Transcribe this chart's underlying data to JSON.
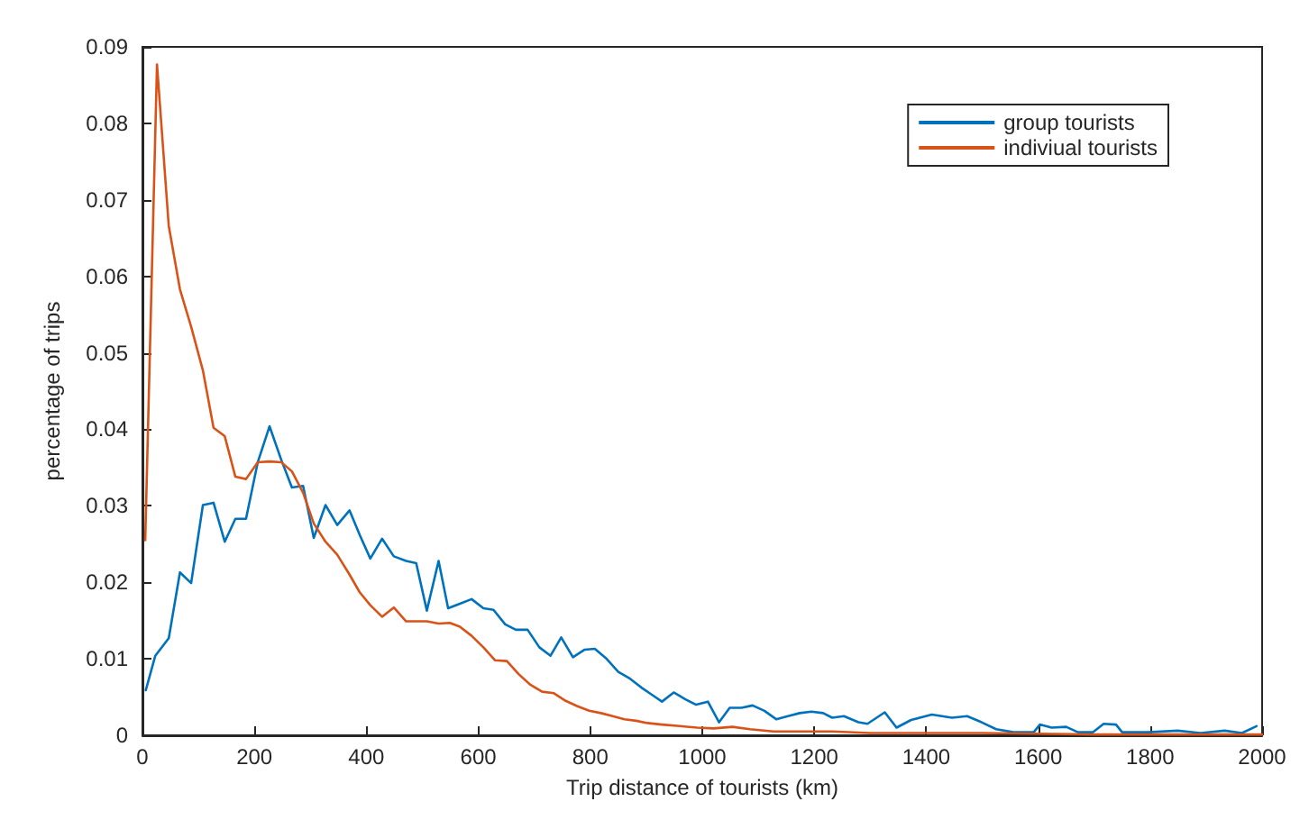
{
  "chart_data": {
    "type": "line",
    "xlabel": "Trip distance of tourists (km)",
    "ylabel": "percentage of trips",
    "xlim": [
      0,
      2000
    ],
    "xticks": [
      0,
      200,
      400,
      600,
      800,
      1000,
      1200,
      1400,
      1600,
      1800,
      2000
    ],
    "ylim": [
      0,
      0.09
    ],
    "yticks": [
      0,
      0.01,
      0.02,
      0.03,
      0.04,
      0.05,
      0.06,
      0.07,
      0.08,
      0.09
    ],
    "grid": false,
    "legend": "top right",
    "marker": "none",
    "line_style": "solid",
    "series": [
      {
        "name": "group tourists",
        "color": "#0072bd",
        "x": [
          6,
          23,
          47,
          67,
          87,
          108,
          127,
          147,
          166,
          185,
          206,
          227,
          248,
          267,
          287,
          306,
          327,
          348,
          370,
          388,
          407,
          428,
          449,
          471,
          489,
          508,
          529,
          546,
          567,
          588,
          609,
          627,
          648,
          667,
          688,
          709,
          729,
          748,
          769,
          790,
          808,
          829,
          850,
          871,
          892,
          910,
          928,
          949,
          970,
          989,
          1010,
          1030,
          1049,
          1070,
          1090,
          1111,
          1132,
          1153,
          1174,
          1195,
          1216,
          1232,
          1253,
          1279,
          1295,
          1326,
          1347,
          1373,
          1410,
          1446,
          1473,
          1499,
          1525,
          1556,
          1592,
          1603,
          1624,
          1650,
          1671,
          1698,
          1717,
          1739,
          1750,
          1797,
          1849,
          1890,
          1933,
          1964,
          1990
        ],
        "values": [
          0.0059,
          0.0104,
          0.0127,
          0.0213,
          0.0199,
          0.0301,
          0.0304,
          0.0253,
          0.0283,
          0.0283,
          0.0357,
          0.0404,
          0.036,
          0.0324,
          0.0326,
          0.0258,
          0.0301,
          0.0275,
          0.0294,
          0.0262,
          0.0231,
          0.0257,
          0.0234,
          0.0228,
          0.0225,
          0.0163,
          0.0228,
          0.0166,
          0.0172,
          0.0178,
          0.0166,
          0.0164,
          0.0145,
          0.0138,
          0.0138,
          0.0115,
          0.0104,
          0.0128,
          0.0102,
          0.0112,
          0.0113,
          0.01,
          0.0083,
          0.0074,
          0.0062,
          0.0053,
          0.0044,
          0.0056,
          0.0047,
          0.004,
          0.0044,
          0.0017,
          0.0036,
          0.0036,
          0.0039,
          0.0032,
          0.0021,
          0.0025,
          0.0029,
          0.0031,
          0.0029,
          0.0023,
          0.0025,
          0.0017,
          0.0015,
          0.003,
          0.001,
          0.002,
          0.0027,
          0.0023,
          0.0025,
          0.0017,
          0.0008,
          0.0004,
          0.0004,
          0.0014,
          0.001,
          0.0011,
          0.0004,
          0.0004,
          0.0015,
          0.0014,
          0.0004,
          0.0004,
          0.0006,
          0.0003,
          0.0006,
          0.0003,
          0.0012
        ]
      },
      {
        "name": "indiviual tourists",
        "color": "#d95319",
        "x": [
          5,
          26,
          47,
          67,
          87,
          108,
          127,
          147,
          166,
          185,
          206,
          227,
          248,
          267,
          287,
          306,
          327,
          348,
          370,
          388,
          407,
          428,
          449,
          471,
          508,
          529,
          549,
          567,
          588,
          609,
          630,
          651,
          672,
          693,
          714,
          735,
          756,
          777,
          798,
          819,
          840,
          861,
          882,
          902,
          928,
          960,
          991,
          1020,
          1054,
          1085,
          1127,
          1180,
          1232,
          1300,
          1400,
          1500,
          1600,
          1700,
          1800,
          1900,
          2000
        ],
        "values": [
          0.0255,
          0.0877,
          0.0666,
          0.0583,
          0.0534,
          0.0477,
          0.0402,
          0.0391,
          0.0338,
          0.0335,
          0.0357,
          0.0358,
          0.0357,
          0.0345,
          0.0317,
          0.0277,
          0.0253,
          0.0236,
          0.021,
          0.0187,
          0.017,
          0.0155,
          0.0167,
          0.0149,
          0.0149,
          0.0146,
          0.0147,
          0.0142,
          0.013,
          0.0115,
          0.0098,
          0.0097,
          0.008,
          0.0066,
          0.0057,
          0.0055,
          0.0045,
          0.0038,
          0.0032,
          0.0029,
          0.0025,
          0.0021,
          0.0019,
          0.0016,
          0.0014,
          0.0012,
          0.001,
          0.0009,
          0.0011,
          0.0008,
          0.0005,
          0.0005,
          0.0005,
          0.0003,
          0.0003,
          0.0003,
          0.0002,
          0.0001,
          0.0001,
          0.0001,
          0.0001
        ]
      }
    ]
  }
}
